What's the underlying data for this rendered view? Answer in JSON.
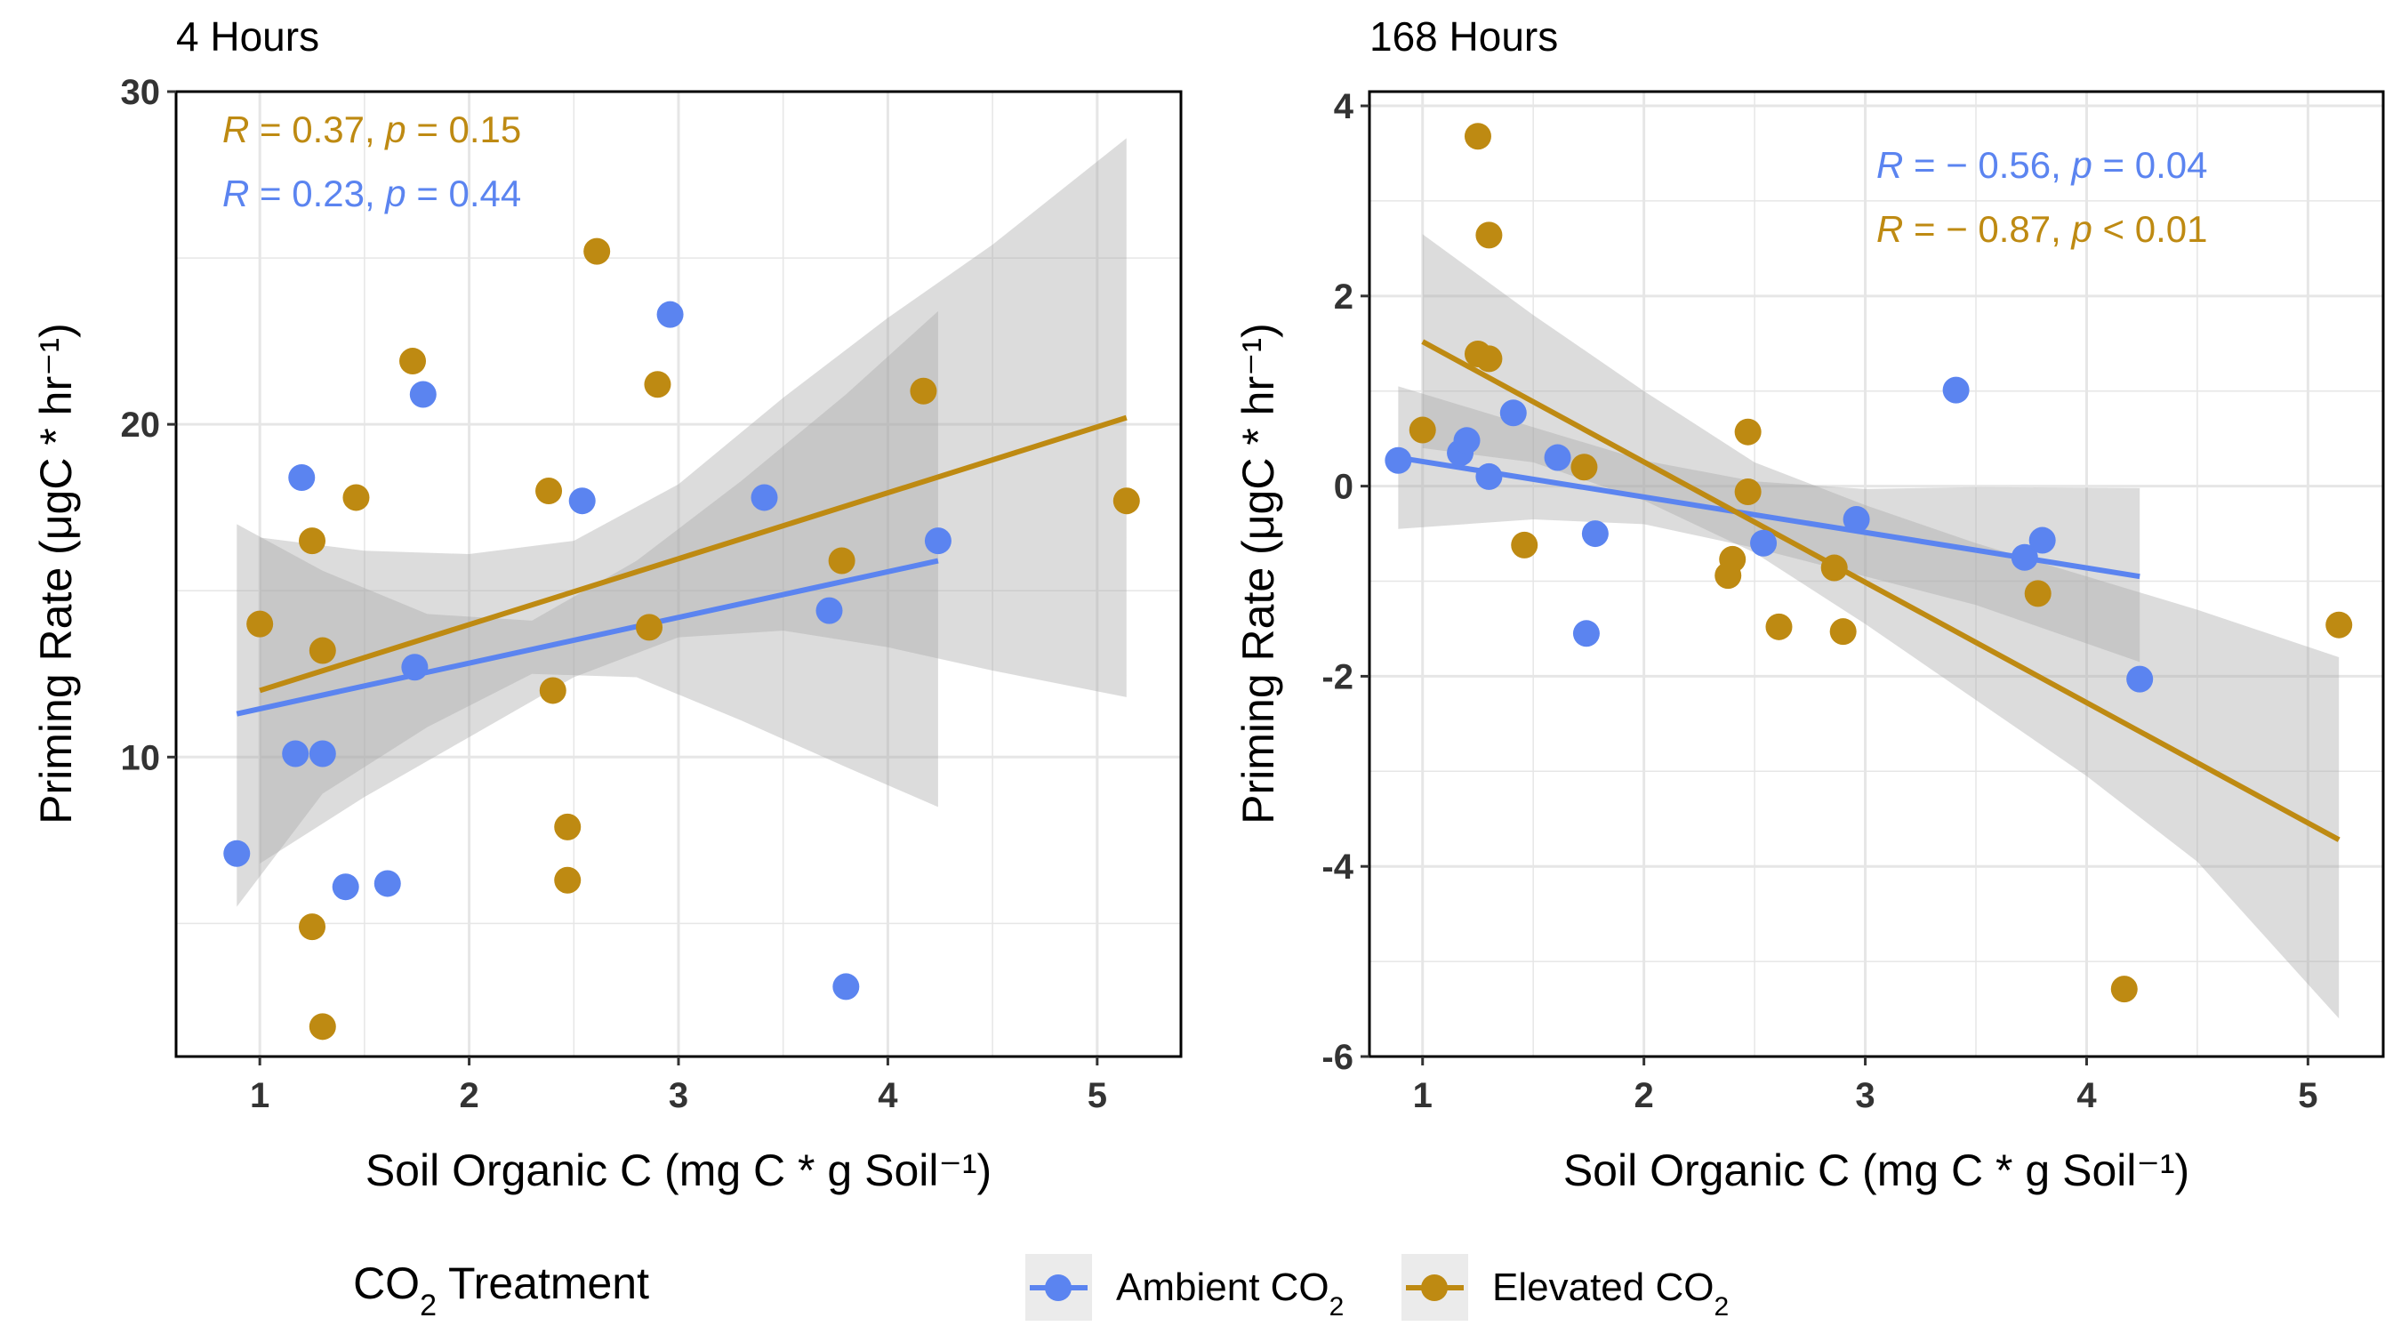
{
  "colors": {
    "ambient": "#5B84F0",
    "elevated": "#BE8A12",
    "ribbon": "#A8A8A8",
    "grid": "#E6E6E6",
    "axis_text": "#333333"
  },
  "legend": {
    "title_main": "CO",
    "title_sub": "2",
    "title_rest": " Treatment",
    "position": "bottom",
    "items": [
      {
        "main": "Ambient CO",
        "sub": "2",
        "color_key": "ambient"
      },
      {
        "main": "Elevated CO",
        "sub": "2",
        "color_key": "elevated"
      }
    ]
  },
  "chart_data": [
    {
      "type": "scatter",
      "title": "4 Hours",
      "xlabel": "Soil Organic C (mg C * g Soil⁻¹)",
      "ylabel": "Priming Rate (μgC * hr⁻¹)",
      "xlim": [
        0.6,
        5.4
      ],
      "ylim": [
        1.0,
        30.0
      ],
      "xticks": [
        1,
        2,
        3,
        4,
        5
      ],
      "yticks": [
        10,
        20,
        30
      ],
      "grid": true,
      "annotations": [
        {
          "id": "elevated",
          "R": "0.37",
          "p": "0.15",
          "op": "=",
          "lines": [
            "R",
            " = 0.37, ",
            "p",
            " = 0.15"
          ]
        },
        {
          "id": "ambient",
          "R": "0.23",
          "p": "0.44",
          "op": "=",
          "lines": [
            "R",
            " = 0.23, ",
            "p",
            " = 0.44"
          ]
        }
      ],
      "series": [
        {
          "name": "Ambient CO2",
          "color_key": "ambient",
          "points": [
            [
              0.89,
              7.1
            ],
            [
              1.17,
              10.1
            ],
            [
              1.2,
              18.4
            ],
            [
              1.3,
              10.1
            ],
            [
              1.41,
              6.1
            ],
            [
              1.61,
              6.2
            ],
            [
              1.74,
              12.7
            ],
            [
              1.78,
              20.9
            ],
            [
              2.54,
              17.7
            ],
            [
              2.96,
              23.3
            ],
            [
              3.41,
              17.8
            ],
            [
              3.72,
              14.4
            ],
            [
              3.8,
              3.1
            ],
            [
              4.24,
              16.5
            ]
          ],
          "fit": {
            "x": [
              0.89,
              4.24
            ],
            "y": [
              11.3,
              15.9
            ]
          },
          "ci": {
            "x": [
              0.89,
              1.3,
              1.8,
              2.3,
              2.8,
              3.3,
              3.8,
              4.24
            ],
            "lower": [
              5.5,
              8.9,
              10.9,
              12.5,
              12.4,
              11.1,
              9.7,
              8.5
            ],
            "upper": [
              17.0,
              15.6,
              14.3,
              14.1,
              15.9,
              18.3,
              20.9,
              23.4
            ]
          }
        },
        {
          "name": "Elevated CO2",
          "color_key": "elevated",
          "points": [
            [
              1.0,
              14.0
            ],
            [
              1.25,
              16.5
            ],
            [
              1.25,
              4.9
            ],
            [
              1.3,
              13.2
            ],
            [
              1.3,
              1.9
            ],
            [
              1.46,
              17.8
            ],
            [
              1.73,
              21.9
            ],
            [
              2.38,
              18.0
            ],
            [
              2.4,
              12.0
            ],
            [
              2.47,
              7.9
            ],
            [
              2.47,
              6.3
            ],
            [
              2.61,
              25.2
            ],
            [
              2.86,
              13.9
            ],
            [
              2.9,
              21.2
            ],
            [
              3.78,
              15.9
            ],
            [
              4.17,
              21.0
            ],
            [
              5.14,
              17.7
            ]
          ],
          "fit": {
            "x": [
              1.0,
              5.14
            ],
            "y": [
              12.0,
              20.2
            ]
          },
          "ci": {
            "x": [
              1.0,
              1.5,
              2.0,
              2.5,
              3.0,
              3.5,
              4.0,
              4.5,
              5.14
            ],
            "lower": [
              6.8,
              8.8,
              10.6,
              12.4,
              13.6,
              13.8,
              13.3,
              12.6,
              11.8
            ],
            "upper": [
              16.6,
              16.2,
              16.1,
              16.5,
              18.2,
              20.8,
              23.2,
              25.4,
              28.6
            ]
          }
        }
      ]
    },
    {
      "type": "scatter",
      "title": "168 Hours",
      "xlabel": "Soil Organic C (mg C * g Soil⁻¹)",
      "ylabel": "Priming Rate (μgC * hr⁻¹)",
      "xlim": [
        0.76,
        5.34
      ],
      "ylim": [
        -6.0,
        4.15
      ],
      "xticks": [
        1,
        2,
        3,
        4,
        5
      ],
      "yticks": [
        -6,
        -4,
        -2,
        0,
        2,
        4
      ],
      "grid": true,
      "annotations": [
        {
          "id": "ambient",
          "R": "−0.56",
          "p": "0.04",
          "op": "=",
          "lines": [
            "R",
            " = − 0.56, ",
            "p",
            " = 0.04"
          ]
        },
        {
          "id": "elevated",
          "R": "−0.87",
          "p": "0.01",
          "op": "<",
          "lines": [
            "R",
            " = − 0.87, ",
            "p",
            " < 0.01"
          ]
        }
      ],
      "series": [
        {
          "name": "Ambient CO2",
          "color_key": "ambient",
          "points": [
            [
              0.89,
              0.27
            ],
            [
              1.17,
              0.35
            ],
            [
              1.2,
              0.48
            ],
            [
              1.3,
              0.1
            ],
            [
              1.41,
              0.77
            ],
            [
              1.61,
              0.3
            ],
            [
              1.74,
              -1.55
            ],
            [
              1.78,
              -0.5
            ],
            [
              2.54,
              -0.6
            ],
            [
              2.96,
              -0.35
            ],
            [
              3.41,
              1.01
            ],
            [
              3.72,
              -0.75
            ],
            [
              3.8,
              -0.57
            ],
            [
              4.24,
              -2.03
            ]
          ],
          "fit": {
            "x": [
              0.89,
              4.24
            ],
            "y": [
              0.3,
              -0.95
            ]
          },
          "ci": {
            "x": [
              0.89,
              1.5,
              2.0,
              2.5,
              3.0,
              3.5,
              4.24
            ],
            "lower": [
              -0.45,
              -0.35,
              -0.4,
              -0.65,
              -0.95,
              -1.25,
              -1.85
            ],
            "upper": [
              1.05,
              0.62,
              0.27,
              0.05,
              -0.03,
              -0.01,
              -0.02
            ]
          }
        },
        {
          "name": "Elevated CO2",
          "color_key": "elevated",
          "points": [
            [
              1.0,
              0.59
            ],
            [
              1.25,
              3.68
            ],
            [
              1.25,
              1.39
            ],
            [
              1.3,
              2.64
            ],
            [
              1.3,
              1.34
            ],
            [
              1.46,
              -0.62
            ],
            [
              1.73,
              0.2
            ],
            [
              2.38,
              -0.94
            ],
            [
              2.4,
              -0.77
            ],
            [
              2.47,
              -0.06
            ],
            [
              2.47,
              0.57
            ],
            [
              2.61,
              -1.48
            ],
            [
              2.86,
              -0.86
            ],
            [
              2.9,
              -1.53
            ],
            [
              3.78,
              -1.13
            ],
            [
              4.17,
              -5.29
            ],
            [
              5.14,
              -1.46
            ]
          ],
          "fit": {
            "x": [
              1.0,
              5.14
            ],
            "y": [
              1.52,
              -3.72
            ]
          },
          "ci": {
            "x": [
              1.0,
              1.5,
              2.0,
              2.5,
              3.0,
              3.5,
              4.0,
              4.5,
              5.14
            ],
            "lower": [
              0.4,
              0.25,
              -0.15,
              -0.7,
              -1.45,
              -2.25,
              -3.05,
              -3.95,
              -5.6
            ],
            "upper": [
              2.65,
              1.8,
              1.0,
              0.25,
              -0.2,
              -0.6,
              -0.95,
              -1.3,
              -1.8
            ]
          }
        }
      ]
    }
  ]
}
